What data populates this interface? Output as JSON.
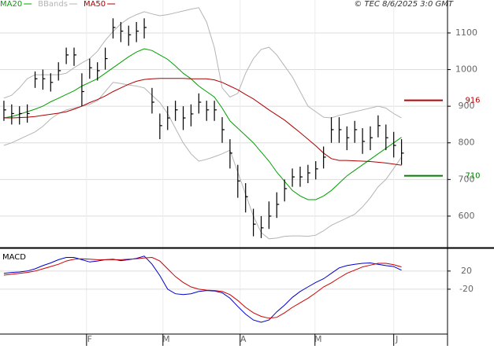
{
  "chart_data": [
    {
      "type": "ohlc",
      "source": "© TEC 8/6/2025 3:0 GMT",
      "xlim": [
        -0.5,
        56.9
      ],
      "xticks": [
        {
          "value": 10.6,
          "label": "F"
        },
        {
          "value": 20.4,
          "label": "M"
        },
        {
          "value": 30.3,
          "label": "A"
        },
        {
          "value": 39.9,
          "label": "M"
        },
        {
          "value": 50,
          "label": "J"
        }
      ],
      "ylim": [
        514,
        1190
      ],
      "yticks": [
        600,
        700,
        800,
        900,
        1000,
        1100
      ],
      "grid": true,
      "bar_color": "#000000",
      "high": [
        915,
        905,
        900,
        905,
        995,
        1000,
        990,
        1020,
        1060,
        1060,
        990,
        1030,
        1020,
        1060,
        1140,
        1130,
        1120,
        1130,
        1140,
        950,
        880,
        900,
        915,
        900,
        905,
        935,
        915,
        915,
        870,
        810,
        740,
        690,
        620,
        600,
        640,
        665,
        700,
        730,
        735,
        740,
        750,
        790,
        870,
        870,
        845,
        860,
        840,
        845,
        875,
        850,
        830,
        810
      ],
      "low": [
        860,
        850,
        850,
        855,
        950,
        945,
        940,
        970,
        1015,
        1010,
        900,
        975,
        970,
        1000,
        1085,
        1075,
        1065,
        1075,
        1085,
        880,
        810,
        835,
        860,
        835,
        845,
        880,
        860,
        860,
        800,
        730,
        650,
        610,
        545,
        540,
        565,
        595,
        640,
        680,
        680,
        690,
        700,
        730,
        800,
        800,
        780,
        800,
        770,
        780,
        815,
        780,
        760,
        740
      ],
      "close": [
        890,
        880,
        880,
        880,
        975,
        975,
        965,
        997,
        1040,
        1040,
        940,
        1005,
        997,
        1030,
        1115,
        1105,
        1095,
        1105,
        1115,
        911,
        847,
        868,
        890,
        868,
        879,
        911,
        890,
        890,
        836,
        772,
        696,
        653,
        578,
        568,
        600,
        632,
        675,
        707,
        707,
        718,
        729,
        761,
        836,
        836,
        814,
        836,
        804,
        814,
        847,
        814,
        793,
        772
      ],
      "series": [
        {
          "name": "MA20",
          "color": "#00a000",
          "values": [
            868,
            872,
            878,
            885,
            892,
            900,
            912,
            922,
            932,
            942,
            955,
            965,
            975,
            990,
            1005,
            1020,
            1035,
            1048,
            1057,
            1052,
            1040,
            1028,
            1010,
            990,
            975,
            955,
            940,
            925,
            895,
            860,
            840,
            820,
            800,
            775,
            750,
            720,
            695,
            670,
            655,
            645,
            645,
            655,
            670,
            690,
            710,
            725,
            740,
            755,
            770,
            785,
            800,
            815
          ]
        },
        {
          "name": "BBands",
          "color": "#b4b4b4",
          "upper": [
            922,
            930,
            950,
            975,
            986,
            986,
            986,
            986,
            990,
            1005,
            1018,
            1030,
            1050,
            1080,
            1104,
            1125,
            1140,
            1150,
            1158,
            1152,
            1147,
            1150,
            1155,
            1160,
            1165,
            1169,
            1130,
            1060,
            950,
            925,
            935,
            990,
            1030,
            1055,
            1061,
            1040,
            1010,
            980,
            940,
            900,
            885,
            870,
            868,
            875,
            880,
            885,
            890,
            895,
            900,
            895,
            880,
            868
          ],
          "lower": [
            793,
            800,
            810,
            820,
            830,
            845,
            865,
            880,
            890,
            895,
            900,
            905,
            915,
            940,
            965,
            962,
            958,
            955,
            950,
            930,
            910,
            880,
            840,
            800,
            770,
            750,
            755,
            762,
            770,
            780,
            720,
            660,
            600,
            555,
            538,
            540,
            545,
            546,
            546,
            545,
            548,
            560,
            575,
            585,
            595,
            605,
            625,
            650,
            680,
            700,
            730,
            761
          ]
        },
        {
          "name": "MA50",
          "color": "#b00000",
          "values": [
            868,
            868,
            869,
            870,
            872,
            875,
            878,
            881,
            885,
            892,
            900,
            910,
            918,
            928,
            940,
            950,
            960,
            968,
            973,
            975,
            976,
            976,
            976,
            976,
            975,
            975,
            975,
            972,
            965,
            955,
            945,
            932,
            920,
            905,
            890,
            876,
            862,
            845,
            828,
            810,
            792,
            772,
            757,
            752,
            752,
            751,
            750,
            749,
            747,
            745,
            742,
            739
          ]
        }
      ],
      "levels": [
        {
          "value": 916,
          "color": "#c00000"
        },
        {
          "value": 710,
          "color": "#008000"
        }
      ]
    },
    {
      "type": "line",
      "title": "MACD",
      "xlim": [
        -0.5,
        56.9
      ],
      "ylim": [
        -119,
        70
      ],
      "yticks": [
        20,
        -20
      ],
      "series": [
        {
          "color": "#0000cc",
          "values": [
            15,
            17,
            18,
            20,
            25,
            32,
            38,
            45,
            50,
            50,
            45,
            40,
            42,
            45,
            46,
            43,
            45,
            48,
            53,
            35,
            10,
            -20,
            -30,
            -32,
            -30,
            -25,
            -23,
            -24,
            -28,
            -40,
            -58,
            -75,
            -88,
            -93,
            -88,
            -70,
            -55,
            -38,
            -25,
            -15,
            -5,
            3,
            15,
            27,
            32,
            35,
            37,
            38,
            35,
            32,
            30,
            22
          ]
        },
        {
          "color": "#cc0000",
          "values": [
            11,
            13,
            15,
            17,
            20,
            25,
            30,
            35,
            42,
            46,
            47,
            46,
            45,
            45,
            45,
            45,
            46,
            47,
            49,
            50,
            42,
            25,
            8,
            -5,
            -15,
            -20,
            -22,
            -23,
            -25,
            -32,
            -45,
            -60,
            -72,
            -80,
            -84,
            -82,
            -72,
            -60,
            -50,
            -40,
            -28,
            -15,
            -6,
            5,
            15,
            22,
            29,
            33,
            37,
            37,
            34,
            29
          ]
        }
      ]
    }
  ]
}
